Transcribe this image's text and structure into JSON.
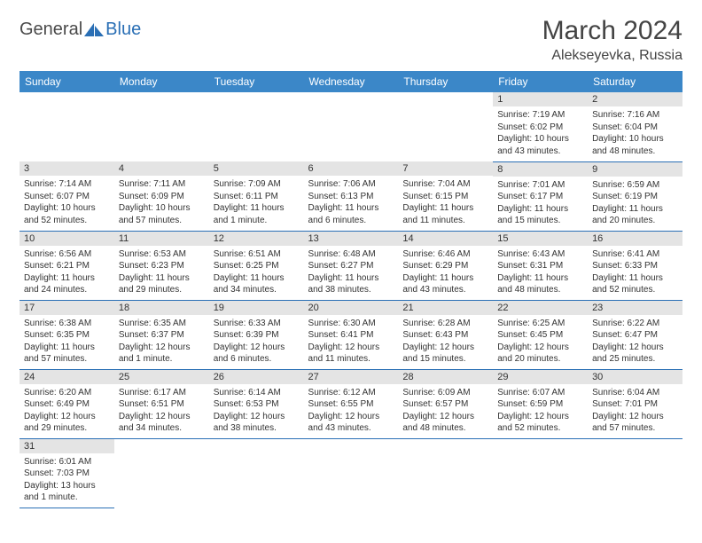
{
  "logo": {
    "part1": "General",
    "part2": "Blue"
  },
  "title": "March 2024",
  "location": "Alekseyevka, Russia",
  "colors": {
    "header_bg": "#3b87c8",
    "accent": "#2a6fb5",
    "daynum_bg": "#e4e4e4",
    "text": "#333333",
    "bg": "#ffffff"
  },
  "typography": {
    "title_size": 30,
    "location_size": 16,
    "header_size": 12,
    "daynum_size": 11,
    "body_size": 10
  },
  "weekdays": [
    "Sunday",
    "Monday",
    "Tuesday",
    "Wednesday",
    "Thursday",
    "Friday",
    "Saturday"
  ],
  "weeks": [
    [
      null,
      null,
      null,
      null,
      null,
      {
        "n": "1",
        "sr": "7:19 AM",
        "ss": "6:02 PM",
        "dl": "10 hours and 43 minutes."
      },
      {
        "n": "2",
        "sr": "7:16 AM",
        "ss": "6:04 PM",
        "dl": "10 hours and 48 minutes."
      }
    ],
    [
      {
        "n": "3",
        "sr": "7:14 AM",
        "ss": "6:07 PM",
        "dl": "10 hours and 52 minutes."
      },
      {
        "n": "4",
        "sr": "7:11 AM",
        "ss": "6:09 PM",
        "dl": "10 hours and 57 minutes."
      },
      {
        "n": "5",
        "sr": "7:09 AM",
        "ss": "6:11 PM",
        "dl": "11 hours and 1 minute."
      },
      {
        "n": "6",
        "sr": "7:06 AM",
        "ss": "6:13 PM",
        "dl": "11 hours and 6 minutes."
      },
      {
        "n": "7",
        "sr": "7:04 AM",
        "ss": "6:15 PM",
        "dl": "11 hours and 11 minutes."
      },
      {
        "n": "8",
        "sr": "7:01 AM",
        "ss": "6:17 PM",
        "dl": "11 hours and 15 minutes."
      },
      {
        "n": "9",
        "sr": "6:59 AM",
        "ss": "6:19 PM",
        "dl": "11 hours and 20 minutes."
      }
    ],
    [
      {
        "n": "10",
        "sr": "6:56 AM",
        "ss": "6:21 PM",
        "dl": "11 hours and 24 minutes."
      },
      {
        "n": "11",
        "sr": "6:53 AM",
        "ss": "6:23 PM",
        "dl": "11 hours and 29 minutes."
      },
      {
        "n": "12",
        "sr": "6:51 AM",
        "ss": "6:25 PM",
        "dl": "11 hours and 34 minutes."
      },
      {
        "n": "13",
        "sr": "6:48 AM",
        "ss": "6:27 PM",
        "dl": "11 hours and 38 minutes."
      },
      {
        "n": "14",
        "sr": "6:46 AM",
        "ss": "6:29 PM",
        "dl": "11 hours and 43 minutes."
      },
      {
        "n": "15",
        "sr": "6:43 AM",
        "ss": "6:31 PM",
        "dl": "11 hours and 48 minutes."
      },
      {
        "n": "16",
        "sr": "6:41 AM",
        "ss": "6:33 PM",
        "dl": "11 hours and 52 minutes."
      }
    ],
    [
      {
        "n": "17",
        "sr": "6:38 AM",
        "ss": "6:35 PM",
        "dl": "11 hours and 57 minutes."
      },
      {
        "n": "18",
        "sr": "6:35 AM",
        "ss": "6:37 PM",
        "dl": "12 hours and 1 minute."
      },
      {
        "n": "19",
        "sr": "6:33 AM",
        "ss": "6:39 PM",
        "dl": "12 hours and 6 minutes."
      },
      {
        "n": "20",
        "sr": "6:30 AM",
        "ss": "6:41 PM",
        "dl": "12 hours and 11 minutes."
      },
      {
        "n": "21",
        "sr": "6:28 AM",
        "ss": "6:43 PM",
        "dl": "12 hours and 15 minutes."
      },
      {
        "n": "22",
        "sr": "6:25 AM",
        "ss": "6:45 PM",
        "dl": "12 hours and 20 minutes."
      },
      {
        "n": "23",
        "sr": "6:22 AM",
        "ss": "6:47 PM",
        "dl": "12 hours and 25 minutes."
      }
    ],
    [
      {
        "n": "24",
        "sr": "6:20 AM",
        "ss": "6:49 PM",
        "dl": "12 hours and 29 minutes."
      },
      {
        "n": "25",
        "sr": "6:17 AM",
        "ss": "6:51 PM",
        "dl": "12 hours and 34 minutes."
      },
      {
        "n": "26",
        "sr": "6:14 AM",
        "ss": "6:53 PM",
        "dl": "12 hours and 38 minutes."
      },
      {
        "n": "27",
        "sr": "6:12 AM",
        "ss": "6:55 PM",
        "dl": "12 hours and 43 minutes."
      },
      {
        "n": "28",
        "sr": "6:09 AM",
        "ss": "6:57 PM",
        "dl": "12 hours and 48 minutes."
      },
      {
        "n": "29",
        "sr": "6:07 AM",
        "ss": "6:59 PM",
        "dl": "12 hours and 52 minutes."
      },
      {
        "n": "30",
        "sr": "6:04 AM",
        "ss": "7:01 PM",
        "dl": "12 hours and 57 minutes."
      }
    ],
    [
      {
        "n": "31",
        "sr": "6:01 AM",
        "ss": "7:03 PM",
        "dl": "13 hours and 1 minute."
      },
      null,
      null,
      null,
      null,
      null,
      null
    ]
  ],
  "labels": {
    "sunrise": "Sunrise:",
    "sunset": "Sunset:",
    "daylight": "Daylight:"
  }
}
